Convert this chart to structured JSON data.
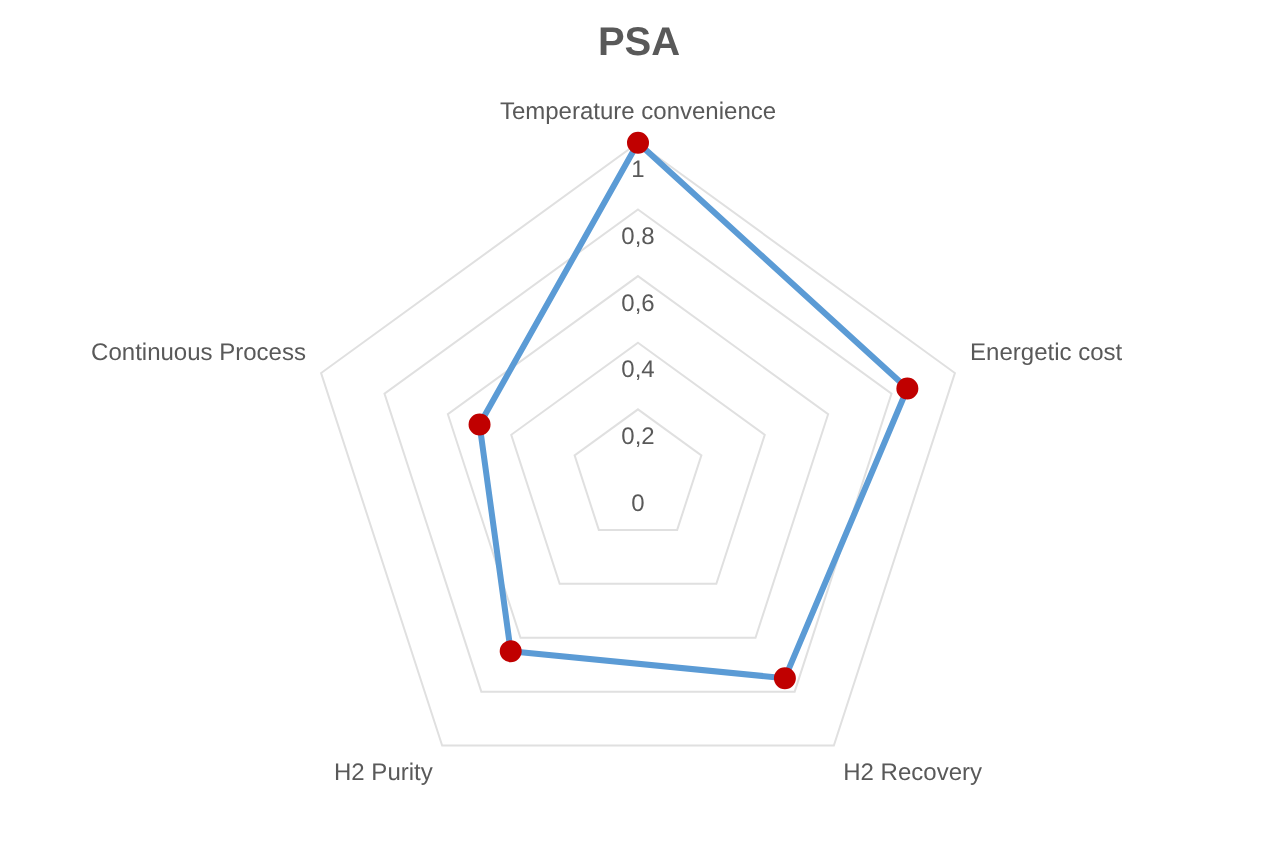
{
  "chart_data": {
    "type": "radar",
    "title": "PSA",
    "categories": [
      "Temperature convenience",
      "Energetic cost",
      "H2 Recovery",
      "H2 Purity",
      "Continuous Process"
    ],
    "series": [
      {
        "color": "#5b9bd5",
        "colors": [
          "#c00000",
          "#c00000",
          "#c00000",
          "#c00000",
          "#c00000"
        ],
        "values": [
          1,
          0.85,
          0.75,
          0.65,
          0.5
        ]
      }
    ],
    "ylim": [
      0,
      1
    ],
    "yticks": [
      0,
      {
        "value": 0.2,
        "label": "0,2"
      },
      {
        "value": 0.4,
        "label": "0,4"
      },
      {
        "value": 0.6,
        "label": "0,6"
      },
      {
        "value": 0.8,
        "label": "0,8"
      },
      1
    ],
    "grid": true,
    "legend": false,
    "marker": "circle"
  }
}
